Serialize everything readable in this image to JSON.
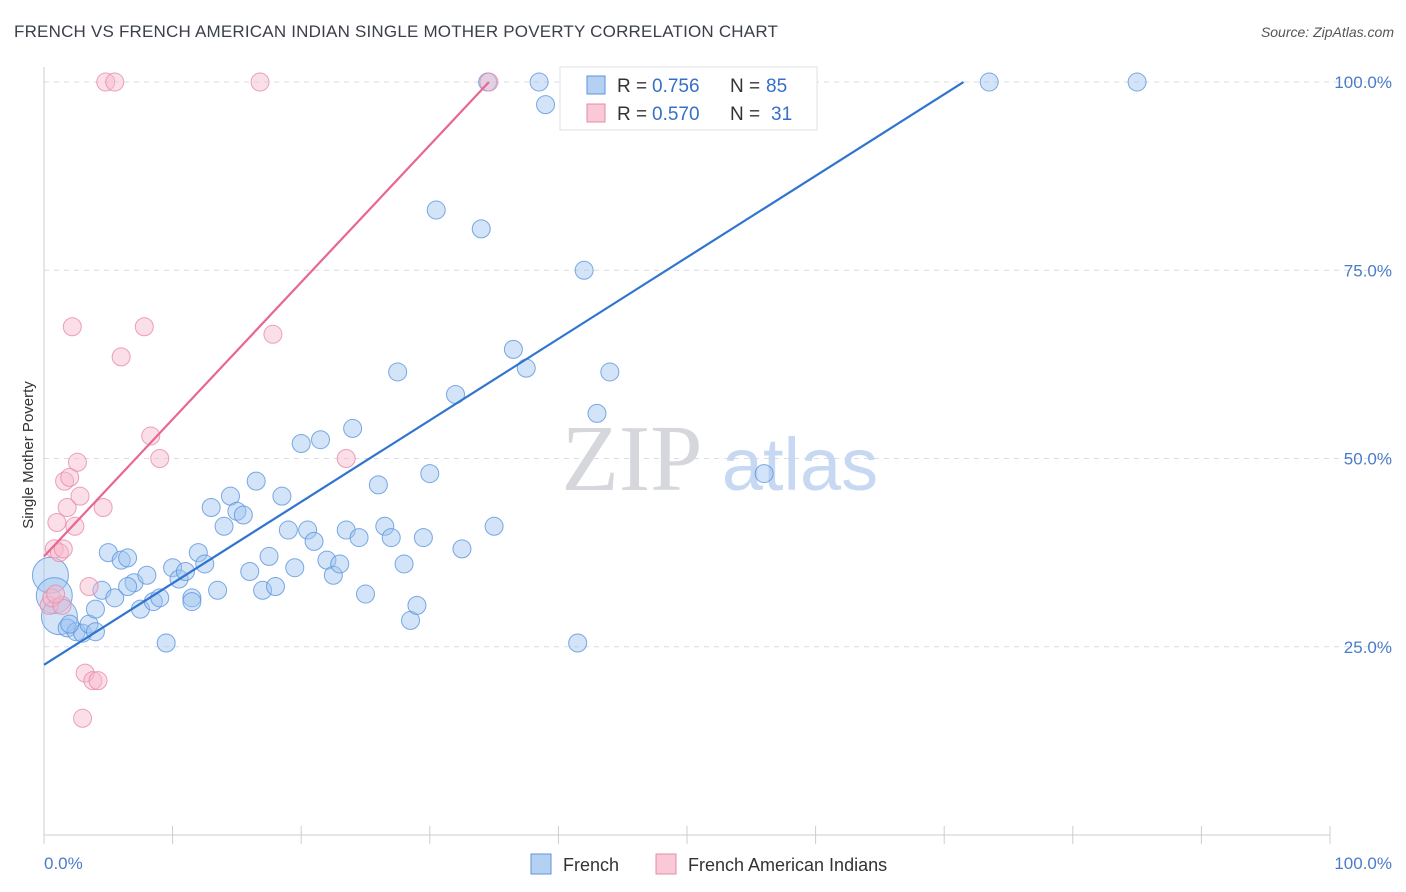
{
  "title": "FRENCH VS FRENCH AMERICAN INDIAN SINGLE MOTHER POVERTY CORRELATION CHART",
  "source": "Source: ZipAtlas.com",
  "watermark": {
    "zip": "ZIP",
    "atlas": "atlas"
  },
  "colors": {
    "blue": "#9ec3ef",
    "blue_stroke": "#5b93dd",
    "blue_line": "#2f74cf",
    "pink": "#f6b8cb",
    "pink_stroke": "#e88aa8",
    "pink_line": "#e8678f",
    "tick_blue": "#4a7cc9",
    "grid": "#d9dce3"
  },
  "legend": {
    "rows": [
      {
        "r_label": "R =",
        "r_value": "0.756",
        "n_label": "N =",
        "n_value": "85"
      },
      {
        "r_label": "R =",
        "r_value": "0.570",
        "n_label": "N =",
        "n_value": "31"
      }
    ]
  },
  "chart_data": {
    "type": "scatter",
    "title": "FRENCH VS FRENCH AMERICAN INDIAN SINGLE MOTHER POVERTY CORRELATION CHART",
    "xlabel": "",
    "ylabel": "Single Mother Poverty",
    "xlim": [
      0,
      100
    ],
    "ylim": [
      0,
      102
    ],
    "x_tick_labels": [
      "0.0%",
      "100.0%"
    ],
    "y_ticks": [
      25,
      50,
      75,
      100
    ],
    "y_tick_labels": [
      "25.0%",
      "50.0%",
      "75.0%",
      "100.0%"
    ],
    "grid": true,
    "legend_position": "top-center",
    "series": [
      {
        "name": "French",
        "r": 0.756,
        "n": 85,
        "trend": {
          "x0": 0,
          "y0": 22.6,
          "x1": 71.5,
          "y1": 100
        },
        "points": [
          [
            0.5,
            34.5
          ],
          [
            0.8,
            31.8
          ],
          [
            1.2,
            29.0
          ],
          [
            1.8,
            27.5
          ],
          [
            2.5,
            27.0
          ],
          [
            3.0,
            26.8
          ],
          [
            3.5,
            28.0
          ],
          [
            4.0,
            30.0
          ],
          [
            4.5,
            32.5
          ],
          [
            5.0,
            37.5
          ],
          [
            5.5,
            31.5
          ],
          [
            6.0,
            36.5
          ],
          [
            6.5,
            36.8
          ],
          [
            7.0,
            33.5
          ],
          [
            7.5,
            30.0
          ],
          [
            8.0,
            34.5
          ],
          [
            8.5,
            31.0
          ],
          [
            9.0,
            31.5
          ],
          [
            9.5,
            25.5
          ],
          [
            10.0,
            35.5
          ],
          [
            10.5,
            34.0
          ],
          [
            11.0,
            35.0
          ],
          [
            11.5,
            31.5
          ],
          [
            12.0,
            37.5
          ],
          [
            12.5,
            36.0
          ],
          [
            13.0,
            43.5
          ],
          [
            13.5,
            32.5
          ],
          [
            14.0,
            41.0
          ],
          [
            14.5,
            45.0
          ],
          [
            15.0,
            43.0
          ],
          [
            15.5,
            42.5
          ],
          [
            16.0,
            35.0
          ],
          [
            16.5,
            47.0
          ],
          [
            17.0,
            32.5
          ],
          [
            17.5,
            37.0
          ],
          [
            18.0,
            33.0
          ],
          [
            18.5,
            45.0
          ],
          [
            19.0,
            40.5
          ],
          [
            19.5,
            35.5
          ],
          [
            20.0,
            52.0
          ],
          [
            20.5,
            40.5
          ],
          [
            21.0,
            39.0
          ],
          [
            21.5,
            52.5
          ],
          [
            22.0,
            36.5
          ],
          [
            22.5,
            34.5
          ],
          [
            23.0,
            36.0
          ],
          [
            23.5,
            40.5
          ],
          [
            24.0,
            54.0
          ],
          [
            24.5,
            39.5
          ],
          [
            25.0,
            32.0
          ],
          [
            26.0,
            46.5
          ],
          [
            26.5,
            41.0
          ],
          [
            27.0,
            39.5
          ],
          [
            27.5,
            61.5
          ],
          [
            28.0,
            36.0
          ],
          [
            28.5,
            28.5
          ],
          [
            29.0,
            30.5
          ],
          [
            29.5,
            39.5
          ],
          [
            30.0,
            48.0
          ],
          [
            30.5,
            83.0
          ],
          [
            32.0,
            58.5
          ],
          [
            32.5,
            38.0
          ],
          [
            34.0,
            80.5
          ],
          [
            34.5,
            100
          ],
          [
            35.0,
            41.0
          ],
          [
            36.5,
            64.5
          ],
          [
            37.5,
            62.0
          ],
          [
            38.5,
            100
          ],
          [
            39.0,
            97.0
          ],
          [
            41.0,
            100
          ],
          [
            41.5,
            25.5
          ],
          [
            42.0,
            75.0
          ],
          [
            43.0,
            56.0
          ],
          [
            44.0,
            61.5
          ],
          [
            46.0,
            100
          ],
          [
            48.0,
            100
          ],
          [
            50.0,
            100
          ],
          [
            51.0,
            100
          ],
          [
            56.0,
            48.0
          ],
          [
            73.5,
            100
          ],
          [
            85.0,
            100
          ],
          [
            4.0,
            27.0
          ],
          [
            2.0,
            28.0
          ],
          [
            6.5,
            33.0
          ],
          [
            11.5,
            31.0
          ]
        ]
      },
      {
        "name": "French American Indians",
        "r": 0.57,
        "n": 31,
        "trend": {
          "x0": 0,
          "y0": 37.0,
          "x1": 34.6,
          "y1": 100
        },
        "points": [
          [
            0.4,
            30.5
          ],
          [
            0.6,
            31.5
          ],
          [
            0.8,
            38.0
          ],
          [
            1.0,
            41.5
          ],
          [
            1.2,
            37.5
          ],
          [
            1.4,
            30.5
          ],
          [
            1.6,
            47.0
          ],
          [
            1.8,
            43.5
          ],
          [
            2.0,
            47.5
          ],
          [
            2.2,
            67.5
          ],
          [
            2.4,
            41.0
          ],
          [
            2.6,
            49.5
          ],
          [
            2.8,
            45.0
          ],
          [
            3.0,
            15.5
          ],
          [
            3.2,
            21.5
          ],
          [
            3.5,
            33.0
          ],
          [
            3.8,
            20.5
          ],
          [
            4.2,
            20.5
          ],
          [
            4.6,
            43.5
          ],
          [
            4.8,
            100
          ],
          [
            5.5,
            100
          ],
          [
            6.0,
            63.5
          ],
          [
            7.8,
            67.5
          ],
          [
            8.3,
            53.0
          ],
          [
            9.0,
            50.0
          ],
          [
            16.8,
            100
          ],
          [
            17.8,
            66.5
          ],
          [
            23.5,
            50.0
          ],
          [
            34.6,
            100
          ],
          [
            1.5,
            38.0
          ],
          [
            0.9,
            32.0
          ]
        ]
      }
    ]
  }
}
